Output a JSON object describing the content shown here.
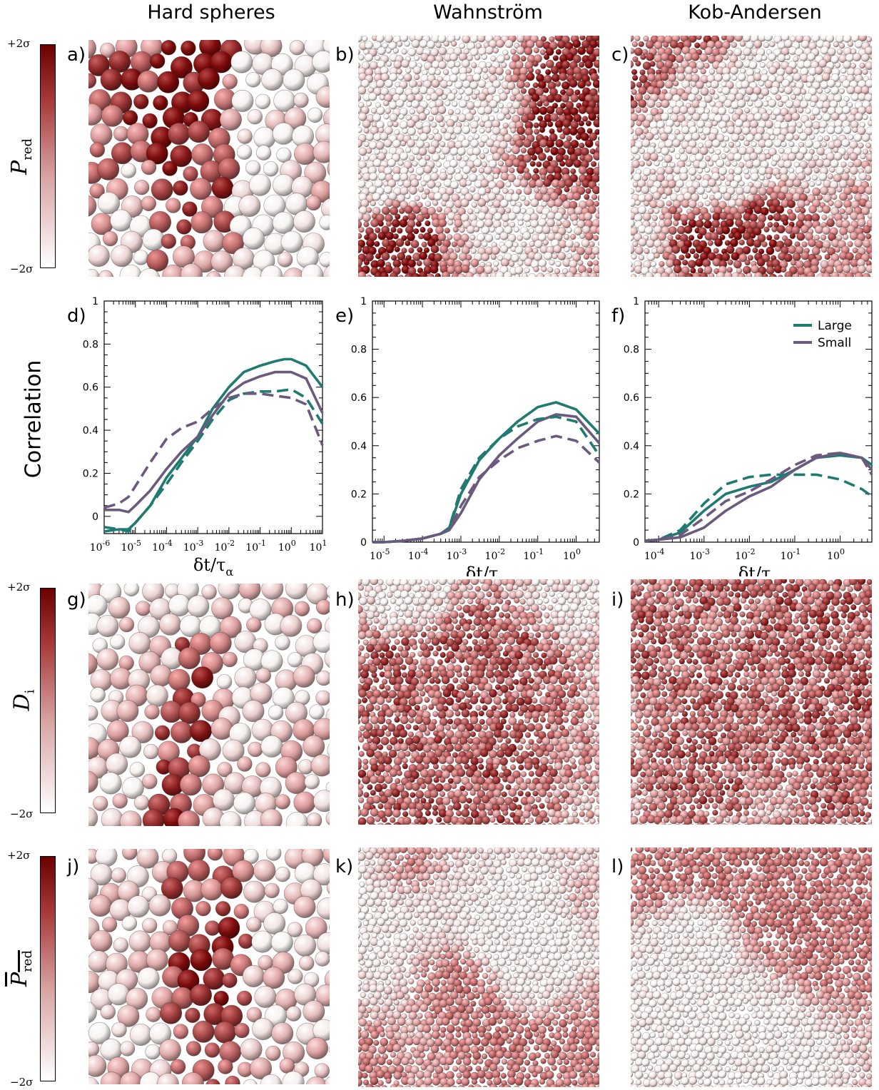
{
  "columns": [
    "Hard spheres",
    "Wahnström",
    "Kob-Andersen"
  ],
  "panel_labels": [
    "a)",
    "b)",
    "c)",
    "d)",
    "e)",
    "f)",
    "g)",
    "h)",
    "i)",
    "j)",
    "k)",
    "l)"
  ],
  "colorbar": {
    "top": "+2σ",
    "bottom": "−2σ"
  },
  "row_labels": {
    "row1": "P",
    "row1_sub": "red",
    "row3": "D",
    "row3_sub": "i",
    "row4": "P",
    "row4_sub": "red"
  },
  "y_axis_label": "Correlation",
  "x_axis_label": "δt/τ",
  "x_axis_sub": "α",
  "colors": {
    "large": "#1f7a70",
    "small": "#6b5a7e",
    "dark_red": "#7a0b0b",
    "white": "#f4f1f0"
  },
  "legend": {
    "large": "Large",
    "small": "Small"
  },
  "chart_data": [
    {
      "type": "line",
      "panel": "d)",
      "xscale": "log",
      "xlim": [
        1e-06,
        10
      ],
      "ylim": [
        -0.08,
        1
      ],
      "x_ticks": [
        "10-6",
        "10-5",
        "10-4",
        "10-3",
        "10-2",
        "10-1",
        "100",
        "101"
      ],
      "y_ticks": [
        "0",
        "0.2",
        "0.4",
        "0.6",
        "0.8",
        "1"
      ],
      "series": [
        {
          "style": "solid",
          "color": "#1f7a70",
          "x": [
            1e-06,
            3e-06,
            6e-06,
            1e-05,
            3e-05,
            0.0001,
            0.0003,
            0.001,
            0.003,
            0.01,
            0.03,
            0.1,
            0.3,
            0.6,
            1,
            3,
            10
          ],
          "y": [
            -0.07,
            -0.06,
            -0.06,
            -0.03,
            0.05,
            0.18,
            0.27,
            0.37,
            0.5,
            0.6,
            0.67,
            0.7,
            0.72,
            0.73,
            0.73,
            0.7,
            0.6
          ]
        },
        {
          "style": "solid",
          "color": "#6b5a7e",
          "x": [
            1e-06,
            3e-06,
            6e-06,
            1e-05,
            3e-05,
            0.0001,
            0.0003,
            0.001,
            0.003,
            0.01,
            0.03,
            0.1,
            0.3,
            0.6,
            1,
            3,
            10
          ],
          "y": [
            0.03,
            0.03,
            0.02,
            0.05,
            0.12,
            0.22,
            0.3,
            0.37,
            0.47,
            0.57,
            0.62,
            0.65,
            0.67,
            0.67,
            0.67,
            0.64,
            0.48
          ]
        },
        {
          "style": "dashed",
          "color": "#1f7a70",
          "x": [
            1e-06,
            3e-06,
            6e-06,
            1e-05,
            3e-05,
            0.0001,
            0.0003,
            0.001,
            0.003,
            0.01,
            0.03,
            0.1,
            0.3,
            1,
            3,
            10
          ],
          "y": [
            -0.05,
            -0.06,
            -0.07,
            -0.03,
            0.05,
            0.15,
            0.25,
            0.35,
            0.45,
            0.54,
            0.57,
            0.58,
            0.58,
            0.59,
            0.55,
            0.43
          ]
        },
        {
          "style": "dashed",
          "color": "#6b5a7e",
          "x": [
            1e-06,
            3e-06,
            6e-06,
            1e-05,
            3e-05,
            0.0001,
            0.0003,
            0.001,
            0.003,
            0.01,
            0.03,
            0.1,
            0.3,
            1,
            3,
            10
          ],
          "y": [
            0.04,
            0.06,
            0.09,
            0.14,
            0.25,
            0.36,
            0.41,
            0.44,
            0.5,
            0.55,
            0.57,
            0.57,
            0.56,
            0.55,
            0.52,
            0.33
          ]
        }
      ]
    },
    {
      "type": "line",
      "panel": "e)",
      "xscale": "log",
      "xlim": [
        5e-06,
        4
      ],
      "ylim": [
        0,
        1
      ],
      "x_ticks": [
        "10-5",
        "10-4",
        "10-3",
        "10-2",
        "10-1",
        "100"
      ],
      "y_ticks": [
        "0",
        "0.2",
        "0.4",
        "0.6",
        "0.8",
        "1"
      ],
      "series": [
        {
          "style": "solid",
          "color": "#1f7a70",
          "x": [
            5e-06,
            1e-05,
            3e-05,
            0.0001,
            0.0003,
            0.0005,
            0.001,
            0.003,
            0.01,
            0.03,
            0.1,
            0.3,
            1,
            4
          ],
          "y": [
            0,
            0,
            0.005,
            0.015,
            0.035,
            0.06,
            0.2,
            0.34,
            0.43,
            0.5,
            0.56,
            0.58,
            0.55,
            0.45
          ]
        },
        {
          "style": "solid",
          "color": "#6b5a7e",
          "x": [
            5e-06,
            1e-05,
            3e-05,
            0.0001,
            0.0003,
            0.0005,
            0.001,
            0.003,
            0.01,
            0.03,
            0.1,
            0.3,
            1,
            4
          ],
          "y": [
            0,
            0,
            0.005,
            0.015,
            0.035,
            0.05,
            0.12,
            0.26,
            0.36,
            0.43,
            0.5,
            0.53,
            0.52,
            0.41
          ]
        },
        {
          "style": "dashed",
          "color": "#1f7a70",
          "x": [
            5e-06,
            1e-05,
            3e-05,
            0.0001,
            0.0003,
            0.0005,
            0.001,
            0.003,
            0.01,
            0.03,
            0.1,
            0.3,
            1,
            4
          ],
          "y": [
            0,
            0,
            0.005,
            0.015,
            0.035,
            0.06,
            0.22,
            0.35,
            0.43,
            0.48,
            0.51,
            0.52,
            0.5,
            0.36
          ]
        },
        {
          "style": "dashed",
          "color": "#6b5a7e",
          "x": [
            5e-06,
            1e-05,
            3e-05,
            0.0001,
            0.0003,
            0.0005,
            0.001,
            0.003,
            0.01,
            0.03,
            0.1,
            0.3,
            1,
            4
          ],
          "y": [
            0,
            0,
            0.005,
            0.015,
            0.035,
            0.05,
            0.15,
            0.27,
            0.34,
            0.39,
            0.42,
            0.44,
            0.42,
            0.33
          ]
        }
      ]
    },
    {
      "type": "line",
      "panel": "f)",
      "xscale": "log",
      "xlim": [
        5e-05,
        5
      ],
      "ylim": [
        0,
        1
      ],
      "x_ticks": [
        "10-4",
        "10-3",
        "10-2",
        "10-1",
        "100"
      ],
      "y_ticks": [
        "0",
        "0.2",
        "0.4",
        "0.6",
        "0.8",
        "1"
      ],
      "series": [
        {
          "style": "solid",
          "color": "#1f7a70",
          "x": [
            5e-05,
            0.0001,
            0.0003,
            0.001,
            0.003,
            0.01,
            0.03,
            0.1,
            0.3,
            1,
            3,
            5
          ],
          "y": [
            0.005,
            0.01,
            0.04,
            0.13,
            0.2,
            0.23,
            0.25,
            0.3,
            0.35,
            0.36,
            0.35,
            0.32
          ]
        },
        {
          "style": "solid",
          "color": "#6b5a7e",
          "x": [
            5e-05,
            0.0001,
            0.0003,
            0.001,
            0.003,
            0.01,
            0.03,
            0.1,
            0.3,
            1,
            3,
            5
          ],
          "y": [
            0.005,
            0.01,
            0.02,
            0.06,
            0.13,
            0.19,
            0.23,
            0.3,
            0.35,
            0.37,
            0.35,
            0.3
          ]
        },
        {
          "style": "dashed",
          "color": "#1f7a70",
          "x": [
            5e-05,
            0.0001,
            0.0003,
            0.001,
            0.003,
            0.01,
            0.03,
            0.1,
            0.3,
            1,
            3,
            5
          ],
          "y": [
            0.005,
            0.01,
            0.05,
            0.16,
            0.24,
            0.27,
            0.28,
            0.28,
            0.28,
            0.26,
            0.22,
            0.19
          ]
        },
        {
          "style": "dashed",
          "color": "#6b5a7e",
          "x": [
            5e-05,
            0.0001,
            0.0003,
            0.001,
            0.003,
            0.01,
            0.03,
            0.1,
            0.3,
            1,
            3,
            5
          ],
          "y": [
            0.005,
            0.01,
            0.03,
            0.1,
            0.17,
            0.21,
            0.26,
            0.32,
            0.36,
            0.37,
            0.35,
            0.28
          ]
        }
      ]
    }
  ]
}
